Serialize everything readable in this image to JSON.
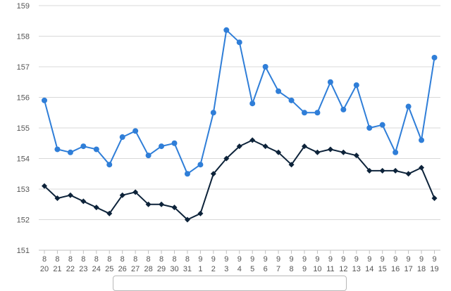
{
  "chart_data": {
    "type": "line",
    "title": "",
    "xlabel": "",
    "ylabel": "",
    "ylim": [
      151,
      159
    ],
    "yticks": [
      "151",
      "152",
      "153",
      "154",
      "155",
      "156",
      "157",
      "158",
      "159"
    ],
    "grid": true,
    "categories": [
      [
        "8",
        "20"
      ],
      [
        "8",
        "21"
      ],
      [
        "8",
        "22"
      ],
      [
        "8",
        "23"
      ],
      [
        "8",
        "24"
      ],
      [
        "8",
        "25"
      ],
      [
        "8",
        "26"
      ],
      [
        "8",
        "27"
      ],
      [
        "8",
        "28"
      ],
      [
        "8",
        "29"
      ],
      [
        "8",
        "30"
      ],
      [
        "8",
        "31"
      ],
      [
        "9",
        "1"
      ],
      [
        "9",
        "2"
      ],
      [
        "9",
        "3"
      ],
      [
        "9",
        "4"
      ],
      [
        "9",
        "5"
      ],
      [
        "9",
        "6"
      ],
      [
        "9",
        "7"
      ],
      [
        "9",
        "8"
      ],
      [
        "9",
        "9"
      ],
      [
        "9",
        "10"
      ],
      [
        "9",
        "11"
      ],
      [
        "9",
        "12"
      ],
      [
        "9",
        "13"
      ],
      [
        "9",
        "14"
      ],
      [
        "9",
        "15"
      ],
      [
        "9",
        "16"
      ],
      [
        "9",
        "17"
      ],
      [
        "9",
        "18"
      ],
      [
        "9",
        "19"
      ]
    ],
    "series": [
      {
        "color": "#2f7ed8",
        "marker": "circle",
        "values": [
          155.9,
          154.3,
          154.2,
          154.4,
          154.3,
          153.8,
          154.7,
          154.9,
          154.1,
          154.4,
          154.5,
          153.5,
          153.8,
          155.5,
          158.2,
          157.8,
          155.8,
          157.0,
          156.2,
          155.9,
          155.5,
          155.5,
          156.5,
          155.6,
          156.4,
          155.0,
          155.1,
          154.2,
          155.7,
          154.6,
          157.3
        ]
      },
      {
        "color": "#0d233a",
        "marker": "diamond",
        "values": [
          153.1,
          152.7,
          152.8,
          152.6,
          152.4,
          152.2,
          152.8,
          152.9,
          152.5,
          152.5,
          152.4,
          152.0,
          152.2,
          153.5,
          154.0,
          154.4,
          154.6,
          154.4,
          154.2,
          153.8,
          154.4,
          154.2,
          154.3,
          154.2,
          154.1,
          153.6,
          153.6,
          153.6,
          153.5,
          153.7,
          152.7
        ]
      }
    ]
  }
}
